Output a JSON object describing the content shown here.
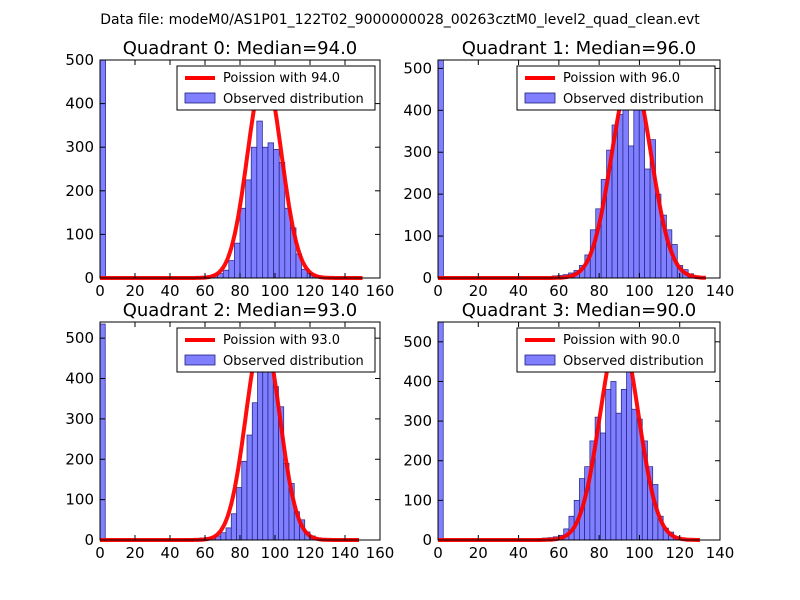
{
  "figure": {
    "suptitle": "Data file: modeM0/AS1P01_122T02_9000000028_00263cztM0_level2_quad_clean.evt"
  },
  "colors": {
    "bar_fill": "#7f7fff",
    "bar_edge": "#202080",
    "poisson_line": "#ff0000"
  },
  "chart_data": [
    {
      "type": "bar",
      "title": "Quadrant 0: Median=94.0",
      "xlim": [
        0,
        160
      ],
      "ylim": [
        0,
        500
      ],
      "xticks": [
        0,
        20,
        40,
        60,
        80,
        100,
        120,
        140,
        160
      ],
      "yticks": [
        0,
        100,
        200,
        300,
        400,
        500
      ],
      "bin_width": 3.2,
      "bins": [
        [
          0,
          500
        ],
        [
          54.4,
          3
        ],
        [
          57.6,
          4
        ],
        [
          60.8,
          5
        ],
        [
          64,
          8
        ],
        [
          67.2,
          10
        ],
        [
          70.4,
          18
        ],
        [
          73.6,
          40
        ],
        [
          76.8,
          80
        ],
        [
          80,
          160
        ],
        [
          83.2,
          225
        ],
        [
          86.4,
          300
        ],
        [
          89.6,
          360
        ],
        [
          92.8,
          300
        ],
        [
          96,
          310
        ],
        [
          99.2,
          295
        ],
        [
          102.4,
          265
        ],
        [
          105.6,
          160
        ],
        [
          108.8,
          115
        ],
        [
          112,
          55
        ],
        [
          115.2,
          20
        ],
        [
          118.4,
          10
        ],
        [
          121.6,
          5
        ],
        [
          124.8,
          2
        ]
      ],
      "legend": {
        "position": "upper-right",
        "line_label": "Poission with 94.0",
        "bar_label": "Observed distribution"
      },
      "poisson": {
        "mean": 94.0,
        "peak": 470,
        "x_range": [
          0,
          150
        ]
      }
    },
    {
      "type": "bar",
      "title": "Quadrant 1: Median=96.0",
      "xlim": [
        0,
        140
      ],
      "ylim": [
        0,
        520
      ],
      "xticks": [
        0,
        20,
        40,
        60,
        80,
        100,
        120,
        140
      ],
      "yticks": [
        0,
        100,
        200,
        300,
        400,
        500
      ],
      "bin_width": 2.7,
      "bins": [
        [
          0,
          520
        ],
        [
          56.7,
          5
        ],
        [
          59.4,
          6
        ],
        [
          62.1,
          8
        ],
        [
          64.8,
          12
        ],
        [
          67.5,
          18
        ],
        [
          70.2,
          30
        ],
        [
          72.9,
          55
        ],
        [
          75.6,
          115
        ],
        [
          78.3,
          165
        ],
        [
          81,
          235
        ],
        [
          83.7,
          305
        ],
        [
          86.4,
          365
        ],
        [
          89.1,
          390
        ],
        [
          91.8,
          420
        ],
        [
          94.5,
          315
        ],
        [
          97.2,
          460
        ],
        [
          99.9,
          430
        ],
        [
          102.6,
          260
        ],
        [
          105.3,
          330
        ],
        [
          108,
          200
        ],
        [
          110.7,
          150
        ],
        [
          113.4,
          115
        ],
        [
          116.1,
          80
        ],
        [
          118.8,
          30
        ],
        [
          121.5,
          20
        ],
        [
          124.2,
          10
        ],
        [
          126.9,
          4
        ]
      ],
      "legend": {
        "position": "upper-right",
        "line_label": "Poission with 96.0",
        "bar_label": "Observed distribution"
      },
      "poisson": {
        "mean": 96.0,
        "peak": 485,
        "x_range": [
          0,
          133
        ]
      }
    },
    {
      "type": "bar",
      "title": "Quadrant 2: Median=93.0",
      "xlim": [
        0,
        160
      ],
      "ylim": [
        0,
        540
      ],
      "xticks": [
        0,
        20,
        40,
        60,
        80,
        100,
        120,
        140,
        160
      ],
      "yticks": [
        0,
        100,
        200,
        300,
        400,
        500
      ],
      "bin_width": 3.0,
      "bins": [
        [
          0,
          535
        ],
        [
          48,
          2
        ],
        [
          51,
          3
        ],
        [
          54,
          4
        ],
        [
          57,
          5
        ],
        [
          60,
          6
        ],
        [
          63,
          7
        ],
        [
          66,
          10
        ],
        [
          69,
          18
        ],
        [
          72,
          30
        ],
        [
          75,
          65
        ],
        [
          78,
          130
        ],
        [
          81,
          195
        ],
        [
          84,
          260
        ],
        [
          87,
          340
        ],
        [
          90,
          425
        ],
        [
          93,
          460
        ],
        [
          96,
          445
        ],
        [
          99,
          380
        ],
        [
          102,
          330
        ],
        [
          105,
          190
        ],
        [
          108,
          140
        ],
        [
          111,
          70
        ],
        [
          114,
          50
        ],
        [
          117,
          20
        ],
        [
          120,
          10
        ],
        [
          123,
          5
        ],
        [
          126,
          3
        ]
      ],
      "legend": {
        "position": "upper-right",
        "line_label": "Poission with 93.0",
        "bar_label": "Observed distribution"
      },
      "poisson": {
        "mean": 93.0,
        "peak": 510,
        "x_range": [
          0,
          148
        ]
      }
    },
    {
      "type": "bar",
      "title": "Quadrant 3: Median=90.0",
      "xlim": [
        0,
        140
      ],
      "ylim": [
        0,
        550
      ],
      "xticks": [
        0,
        20,
        40,
        60,
        80,
        100,
        120,
        140
      ],
      "yticks": [
        0,
        100,
        200,
        300,
        400,
        500
      ],
      "bin_width": 2.6,
      "bins": [
        [
          0,
          550
        ],
        [
          49.4,
          4
        ],
        [
          52,
          5
        ],
        [
          54.6,
          6
        ],
        [
          57.2,
          8
        ],
        [
          59.8,
          12
        ],
        [
          62.4,
          28
        ],
        [
          65,
          60
        ],
        [
          67.6,
          100
        ],
        [
          70.2,
          155
        ],
        [
          72.8,
          185
        ],
        [
          75.4,
          250
        ],
        [
          78,
          310
        ],
        [
          80.6,
          270
        ],
        [
          83.2,
          380
        ],
        [
          85.8,
          400
        ],
        [
          88.4,
          320
        ],
        [
          91,
          380
        ],
        [
          93.6,
          450
        ],
        [
          96.2,
          330
        ],
        [
          98.8,
          305
        ],
        [
          101.4,
          250
        ],
        [
          104,
          185
        ],
        [
          106.6,
          140
        ],
        [
          109.2,
          60
        ],
        [
          111.8,
          30
        ],
        [
          114.4,
          20
        ],
        [
          117,
          8
        ],
        [
          119.6,
          4
        ]
      ],
      "legend": {
        "position": "upper-right",
        "line_label": "Poission with 90.0",
        "bar_label": "Observed distribution"
      },
      "poisson": {
        "mean": 90.0,
        "peak": 525,
        "x_range": [
          0,
          130
        ]
      }
    }
  ]
}
